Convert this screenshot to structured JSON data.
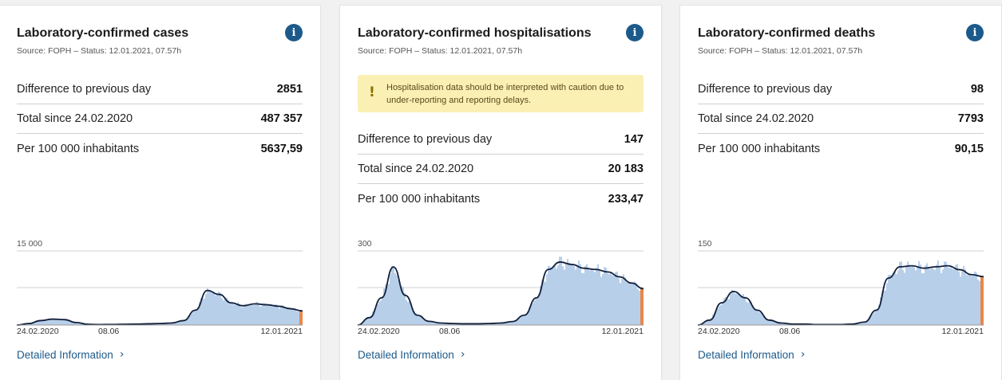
{
  "colors": {
    "accent": "#1c5a8b",
    "bars": "#b8cfea",
    "line": "#12203a",
    "recent": "#e9874a",
    "warning_bg": "#faf0b4"
  },
  "cards": [
    {
      "title": "Laboratory-confirmed cases",
      "source": "Source: FOPH – Status: 12.01.2021, 07.57h",
      "info_icon": "i",
      "stats": [
        {
          "label": "Difference to previous day",
          "value": "2851"
        },
        {
          "label": "Total since 24.02.2020",
          "value": "487 357"
        },
        {
          "label": "Per 100 000 inhabitants",
          "value": "5637,59"
        }
      ],
      "chart_max_label": "15 000",
      "x_labels": [
        "24.02.2020",
        "08.06",
        "12.01.2021"
      ],
      "link": "Detailed Information"
    },
    {
      "title": "Laboratory-confirmed hospitalisations",
      "source": "Source: FOPH – Status: 12.01.2021, 07.57h",
      "info_icon": "i",
      "warning": "Hospitalisation data should be interpreted with caution due to under-reporting and reporting delays.",
      "stats": [
        {
          "label": "Difference to previous day",
          "value": "147"
        },
        {
          "label": "Total since 24.02.2020",
          "value": "20 183"
        },
        {
          "label": "Per 100 000 inhabitants",
          "value": "233,47"
        }
      ],
      "chart_max_label": "300",
      "x_labels": [
        "24.02.2020",
        "08.06",
        "12.01.2021"
      ],
      "link": "Detailed Information"
    },
    {
      "title": "Laboratory-confirmed deaths",
      "source": "Source: FOPH – Status: 12.01.2021, 07.57h",
      "info_icon": "i",
      "stats": [
        {
          "label": "Difference to previous day",
          "value": "98"
        },
        {
          "label": "Total since 24.02.2020",
          "value": "7793"
        },
        {
          "label": "Per 100 000 inhabitants",
          "value": "90,15"
        }
      ],
      "chart_max_label": "150",
      "x_labels": [
        "24.02.2020",
        "08.06",
        "12.01.2021"
      ],
      "link": "Detailed Information"
    }
  ],
  "chart_data": [
    {
      "type": "area",
      "x_labels": [
        "24.02.2020",
        "08.06",
        "12.01.2021"
      ],
      "ylim": [
        0,
        15000
      ],
      "y_ticks": [
        "15 000"
      ],
      "series": [
        {
          "values": [
            0,
            300,
            900,
            1200,
            1100,
            500,
            150,
            100,
            120,
            150,
            200,
            250,
            300,
            400,
            900,
            3000,
            7000,
            6200,
            4500,
            3900,
            4300,
            4100,
            3800,
            3300,
            2851
          ]
        }
      ]
    },
    {
      "type": "area",
      "x_labels": [
        "24.02.2020",
        "08.06",
        "12.01.2021"
      ],
      "ylim": [
        0,
        300
      ],
      "y_ticks": [
        "300"
      ],
      "series": [
        {
          "values": [
            0,
            30,
            110,
            235,
            120,
            40,
            15,
            8,
            6,
            5,
            5,
            6,
            8,
            14,
            40,
            110,
            225,
            255,
            245,
            230,
            225,
            215,
            195,
            170,
            147
          ]
        }
      ]
    },
    {
      "type": "area",
      "x_labels": [
        "24.02.2020",
        "08.06",
        "12.01.2021"
      ],
      "ylim": [
        0,
        150
      ],
      "y_ticks": [
        "150"
      ],
      "series": [
        {
          "values": [
            0,
            10,
            45,
            68,
            55,
            30,
            10,
            4,
            2,
            2,
            1,
            1,
            1,
            2,
            6,
            30,
            95,
            118,
            120,
            115,
            118,
            120,
            112,
            102,
            98
          ]
        }
      ]
    }
  ]
}
